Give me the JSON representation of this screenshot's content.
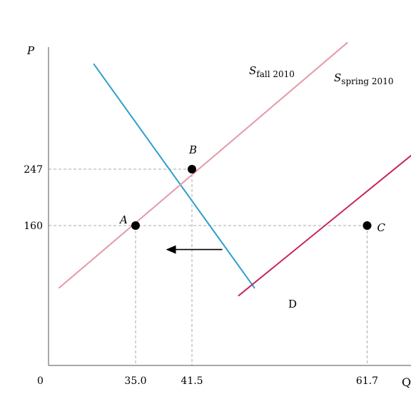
{
  "chart_data": {
    "type": "line",
    "xlabel": "Q",
    "ylabel": "P",
    "origin_label": "0",
    "x_ticks": [
      {
        "value": 35.0,
        "label": "35.0"
      },
      {
        "value": 41.5,
        "label": "41.5"
      },
      {
        "value": 61.7,
        "label": "61.7"
      }
    ],
    "y_ticks": [
      {
        "value": 247,
        "label": "247"
      },
      {
        "value": 160,
        "label": "160"
      }
    ],
    "series": [
      {
        "name": "D",
        "label_main": "D",
        "label_sub": "",
        "color": "#2f9fcb",
        "points": [
          [
            30.2,
            409
          ],
          [
            48.7,
            64
          ]
        ]
      },
      {
        "name": "S fall 2010",
        "label_main": "S",
        "label_sub": "fall 2010",
        "color": "#e39aa8",
        "points": [
          [
            26.2,
            64
          ],
          [
            59.4,
            442
          ]
        ]
      },
      {
        "name": "S spring 2010",
        "label_main": "S",
        "label_sub": "spring 2010",
        "color": "#c8255a",
        "points": [
          [
            46.9,
            52
          ],
          [
            82.3,
            437
          ]
        ]
      }
    ],
    "points": [
      {
        "label": "A",
        "x": 35.0,
        "y": 160
      },
      {
        "label": "B",
        "x": 41.5,
        "y": 247
      },
      {
        "label": "C",
        "x": 61.7,
        "y": 160
      }
    ],
    "arrow": {
      "from": [
        45.0,
        123
      ],
      "to": [
        38.5,
        123
      ],
      "direction": "left"
    },
    "grid": false,
    "colors": {
      "axis": "#555555",
      "guide": "#aaaaaa",
      "point": "#000000",
      "arrow": "#000000"
    }
  }
}
